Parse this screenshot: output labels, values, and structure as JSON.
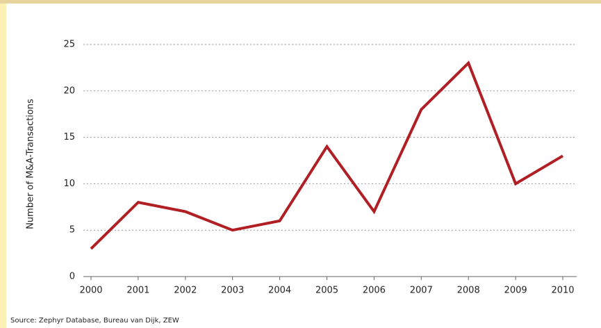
{
  "chart_data": {
    "type": "line",
    "y_label": "Number of M&A-Transactions",
    "source": "Source: Zephyr Database, Bureau van Dijk, ZEW",
    "categories": [
      "2000",
      "2001",
      "2002",
      "2003",
      "2004",
      "2005",
      "2006",
      "2007",
      "2008",
      "2009",
      "2010"
    ],
    "values": [
      3,
      8,
      7,
      5,
      6,
      14,
      7,
      18,
      23,
      10,
      13
    ],
    "color": "#b01f24",
    "ylim": [
      0,
      25
    ],
    "yticks": [
      0,
      5,
      10,
      15,
      20,
      25
    ],
    "grid": true
  }
}
